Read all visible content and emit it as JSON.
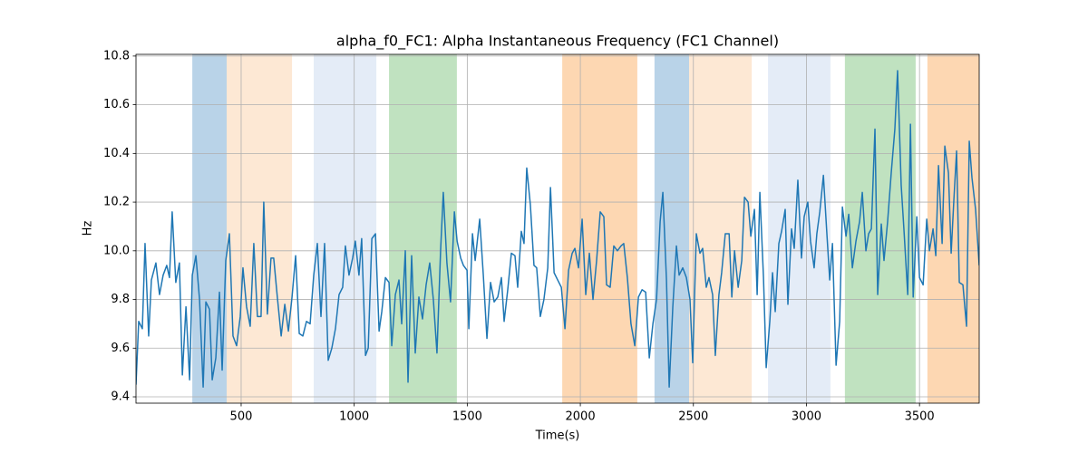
{
  "chart_data": {
    "type": "line",
    "title": "alpha_f0_FC1: Alpha Instantaneous Frequency (FC1 Channel)",
    "xlabel": "Time(s)",
    "ylabel": "Hz",
    "color": "#1f77b4",
    "x": [
      35,
      47,
      63,
      75,
      91,
      103,
      123,
      139,
      155,
      171,
      183,
      195,
      211,
      227,
      240,
      256,
      272,
      284,
      300,
      316,
      332,
      344,
      360,
      372,
      388,
      404,
      416,
      432,
      448,
      464,
      480,
      496,
      508,
      524,
      540,
      556,
      572,
      588,
      600,
      616,
      632,
      644,
      660,
      677,
      693,
      709,
      725,
      741,
      757,
      773,
      789,
      805,
      821,
      837,
      853,
      869,
      885,
      901,
      917,
      933,
      949,
      961,
      977,
      993,
      1005,
      1021,
      1033,
      1050,
      1062,
      1078,
      1094,
      1110,
      1122,
      1138,
      1154,
      1166,
      1182,
      1198,
      1210,
      1226,
      1238,
      1254,
      1270,
      1286,
      1302,
      1318,
      1334,
      1350,
      1366,
      1382,
      1394,
      1410,
      1426,
      1443,
      1455,
      1471,
      1483,
      1499,
      1507,
      1523,
      1535,
      1555,
      1571,
      1587,
      1603,
      1619,
      1635,
      1651,
      1663,
      1679,
      1695,
      1711,
      1723,
      1739,
      1751,
      1763,
      1779,
      1795,
      1807,
      1823,
      1839,
      1856,
      1868,
      1884,
      1900,
      1916,
      1932,
      1948,
      1964,
      1976,
      1992,
      2008,
      2024,
      2040,
      2056,
      2072,
      2088,
      2104,
      2116,
      2132,
      2148,
      2164,
      2180,
      2192,
      2208,
      2224,
      2241,
      2257,
      2273,
      2289,
      2305,
      2321,
      2337,
      2353,
      2365,
      2381,
      2393,
      2409,
      2425,
      2437,
      2453,
      2469,
      2485,
      2497,
      2513,
      2529,
      2541,
      2557,
      2569,
      2585,
      2597,
      2613,
      2625,
      2641,
      2658,
      2670,
      2682,
      2698,
      2714,
      2726,
      2742,
      2754,
      2770,
      2782,
      2794,
      2810,
      2822,
      2838,
      2850,
      2862,
      2878,
      2890,
      2906,
      2918,
      2934,
      2946,
      2962,
      2978,
      2990,
      3006,
      3018,
      3034,
      3046,
      3059,
      3075,
      3091,
      3103,
      3115,
      3131,
      3147,
      3159,
      3175,
      3187,
      3203,
      3219,
      3235,
      3247,
      3263,
      3275,
      3287,
      3303,
      3315,
      3331,
      3343,
      3359,
      3375,
      3391,
      3403,
      3419,
      3431,
      3448,
      3460,
      3472,
      3488,
      3500,
      3516,
      3532,
      3544,
      3560,
      3572,
      3584,
      3600,
      3612,
      3628,
      3640,
      3652,
      3664,
      3676,
      3692,
      3708,
      3720,
      3732,
      3748,
      3764
    ],
    "values": [
      9.45,
      9.71,
      9.68,
      10.03,
      9.65,
      9.88,
      9.95,
      9.82,
      9.9,
      9.94,
      9.89,
      10.16,
      9.87,
      9.95,
      9.49,
      9.77,
      9.47,
      9.9,
      9.98,
      9.8,
      9.44,
      9.79,
      9.76,
      9.47,
      9.56,
      9.83,
      9.51,
      9.96,
      10.07,
      9.65,
      9.61,
      9.73,
      9.93,
      9.77,
      9.69,
      10.03,
      9.73,
      9.73,
      10.2,
      9.74,
      9.97,
      9.97,
      9.81,
      9.65,
      9.78,
      9.67,
      9.81,
      9.98,
      9.66,
      9.65,
      9.71,
      9.7,
      9.9,
      10.03,
      9.73,
      10.03,
      9.55,
      9.6,
      9.68,
      9.82,
      9.85,
      10.02,
      9.9,
      9.97,
      10.04,
      9.9,
      10.05,
      9.57,
      9.6,
      10.05,
      10.07,
      9.67,
      9.75,
      9.89,
      9.87,
      9.61,
      9.82,
      9.88,
      9.7,
      10.0,
      9.46,
      9.98,
      9.58,
      9.81,
      9.72,
      9.86,
      9.95,
      9.8,
      9.58,
      10.0,
      10.24,
      9.95,
      9.79,
      10.16,
      10.04,
      9.97,
      9.94,
      9.92,
      9.68,
      10.07,
      9.96,
      10.13,
      9.9,
      9.64,
      9.87,
      9.79,
      9.81,
      9.89,
      9.71,
      9.84,
      9.99,
      9.98,
      9.85,
      10.08,
      10.03,
      10.34,
      10.19,
      9.94,
      9.93,
      9.73,
      9.8,
      9.93,
      10.26,
      9.91,
      9.88,
      9.85,
      9.68,
      9.92,
      9.99,
      10.01,
      9.93,
      10.13,
      9.82,
      9.99,
      9.8,
      9.96,
      10.16,
      10.14,
      9.86,
      9.85,
      10.02,
      10.0,
      10.02,
      10.03,
      9.89,
      9.7,
      9.61,
      9.81,
      9.84,
      9.83,
      9.56,
      9.7,
      9.8,
      10.12,
      10.24,
      9.88,
      9.44,
      9.77,
      10.02,
      9.9,
      9.93,
      9.89,
      9.8,
      9.54,
      10.07,
      9.99,
      10.01,
      9.85,
      9.89,
      9.82,
      9.57,
      9.82,
      9.91,
      10.07,
      10.07,
      9.81,
      10.0,
      9.85,
      9.96,
      10.22,
      10.2,
      10.06,
      10.17,
      9.82,
      10.24,
      9.89,
      9.52,
      9.71,
      9.91,
      9.75,
      10.03,
      10.08,
      10.17,
      9.78,
      10.09,
      10.01,
      10.29,
      9.97,
      10.14,
      10.2,
      10.04,
      9.93,
      10.07,
      10.16,
      10.31,
      10.06,
      9.88,
      10.03,
      9.53,
      9.71,
      10.18,
      10.06,
      10.15,
      9.93,
      10.04,
      10.12,
      10.24,
      10.0,
      10.07,
      10.09,
      10.5,
      9.82,
      10.11,
      9.96,
      10.12,
      10.32,
      10.5,
      10.74,
      10.27,
      10.09,
      9.82,
      10.52,
      9.81,
      10.14,
      9.89,
      9.86,
      10.13,
      10.0,
      10.09,
      9.98,
      10.35,
      10.03,
      10.43,
      10.32,
      9.99,
      10.21,
      10.41,
      9.87,
      9.86,
      9.69,
      10.45,
      10.3,
      10.17,
      9.94
    ],
    "spans": [
      {
        "start": 284,
        "end": 436,
        "color": "#b9d3e8"
      },
      {
        "start": 436,
        "end": 725,
        "color": "#fde8d4"
      },
      {
        "start": 821,
        "end": 1098,
        "color": "#e4ecf7"
      },
      {
        "start": 1154,
        "end": 1454,
        "color": "#c0e2c0"
      },
      {
        "start": 1920,
        "end": 2252,
        "color": "#fdd7b2"
      },
      {
        "start": 2328,
        "end": 2481,
        "color": "#b9d3e8"
      },
      {
        "start": 2481,
        "end": 2758,
        "color": "#fde8d4"
      },
      {
        "start": 2830,
        "end": 3106,
        "color": "#e4ecf7"
      },
      {
        "start": 3170,
        "end": 3483,
        "color": "#c0e2c0"
      },
      {
        "start": 3535,
        "end": 3764,
        "color": "#fdd7b2"
      }
    ],
    "xlim": [
      35,
      3764
    ],
    "ylim": [
      9.374,
      10.807
    ],
    "xticks": [
      500,
      1000,
      1500,
      2000,
      2500,
      3000,
      3500
    ],
    "yticks": [
      9.4,
      9.6,
      9.8,
      {
        "value": 10,
        "label": "10.0"
      },
      10.2,
      10.4,
      10.6,
      10.8
    ],
    "grid": true
  }
}
